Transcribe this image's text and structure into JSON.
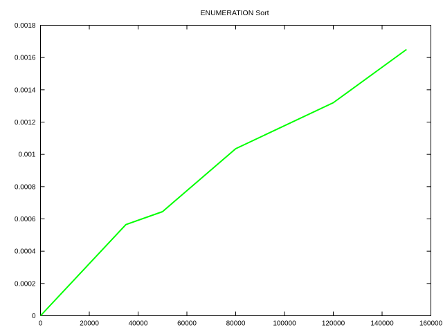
{
  "chart_data": {
    "type": "line",
    "title": "ENUMERATION Sort",
    "xlabel": "",
    "ylabel": "",
    "xlim": [
      0,
      160000
    ],
    "ylim": [
      0,
      0.0018
    ],
    "x_ticks": [
      0,
      20000,
      40000,
      60000,
      80000,
      100000,
      120000,
      140000,
      160000
    ],
    "x_tick_labels": [
      "0",
      "20000",
      "40000",
      "60000",
      "80000",
      "100000",
      "120000",
      "140000",
      "160000"
    ],
    "y_ticks": [
      0,
      0.0002,
      0.0004,
      0.0006,
      0.0008,
      0.001,
      0.0012,
      0.0014,
      0.0016,
      0.0018
    ],
    "y_tick_labels": [
      "0",
      "0.0002",
      "0.0004",
      "0.0006",
      "0.0008",
      "0.001",
      "0.0012",
      "0.0014",
      "0.0016",
      "0.0018"
    ],
    "grid": false,
    "legend": "none",
    "series": [
      {
        "color": "#00ff00",
        "x": [
          0,
          35000,
          50000,
          80000,
          120000,
          150000
        ],
        "y": [
          0,
          0.000565,
          0.000645,
          0.001035,
          0.00132,
          0.00165
        ]
      }
    ]
  }
}
